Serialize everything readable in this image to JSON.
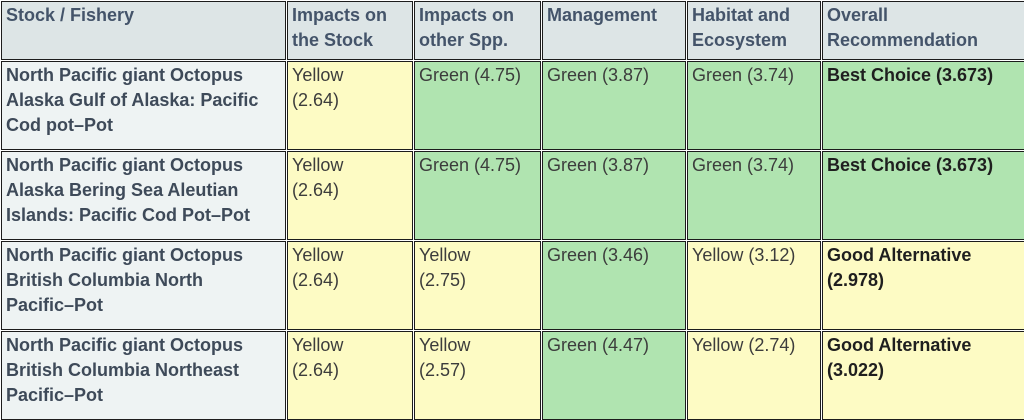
{
  "colors": {
    "header_bg": "#dde5e6",
    "header_text": "#44546a",
    "stock_col_bg": "#eef3f3",
    "stock_col_text": "#3e4a59",
    "yellow": "#fdfbc4",
    "green": "#b0e4b0",
    "cell_text": "#3c3c3c",
    "overall_text": "#1f1f1f",
    "border": "#1c1c1c"
  },
  "table": {
    "columns": [
      {
        "id": "stock",
        "label": "Stock / Fishery"
      },
      {
        "id": "impacts-stock",
        "label": "Impacts on\nthe Stock"
      },
      {
        "id": "impacts-other-spp",
        "label": "Impacts on\nother Spp."
      },
      {
        "id": "management",
        "label": "Management"
      },
      {
        "id": "habitat-ecosystem",
        "label": "Habitat and\nEcosystem"
      },
      {
        "id": "overall-recommendation",
        "label": "Overall\nRecommendation"
      }
    ],
    "rows": [
      {
        "stock": "North Pacific giant Octopus\nAlaska Gulf of Alaska: Pacific\nCod pot–Pot",
        "cells": [
          {
            "text": "Yellow\n(2.64)",
            "rating": "yellow"
          },
          {
            "text": "Green (4.75)",
            "rating": "green"
          },
          {
            "text": "Green (3.87)",
            "rating": "green"
          },
          {
            "text": "Green (3.74)",
            "rating": "green"
          }
        ],
        "overall": {
          "text": "Best Choice (3.673)",
          "rating": "green"
        }
      },
      {
        "stock": "North Pacific giant Octopus\nAlaska Bering Sea Aleutian\nIslands: Pacific Cod Pot–Pot",
        "cells": [
          {
            "text": "Yellow\n(2.64)",
            "rating": "yellow"
          },
          {
            "text": "Green (4.75)",
            "rating": "green"
          },
          {
            "text": "Green (3.87)",
            "rating": "green"
          },
          {
            "text": "Green (3.74)",
            "rating": "green"
          }
        ],
        "overall": {
          "text": "Best Choice (3.673)",
          "rating": "green"
        }
      },
      {
        "stock": "North Pacific giant Octopus\nBritish Columbia North\nPacific–Pot",
        "cells": [
          {
            "text": "Yellow\n(2.64)",
            "rating": "yellow"
          },
          {
            "text": "Yellow\n(2.75)",
            "rating": "yellow"
          },
          {
            "text": "Green (3.46)",
            "rating": "green"
          },
          {
            "text": "Yellow (3.12)",
            "rating": "yellow"
          }
        ],
        "overall": {
          "text": "Good Alternative\n(2.978)",
          "rating": "yellow"
        }
      },
      {
        "stock": "North Pacific giant Octopus\nBritish Columbia Northeast\nPacific–Pot",
        "cells": [
          {
            "text": "Yellow\n(2.64)",
            "rating": "yellow"
          },
          {
            "text": "Yellow\n(2.57)",
            "rating": "yellow"
          },
          {
            "text": "Green (4.47)",
            "rating": "green"
          },
          {
            "text": "Yellow (2.74)",
            "rating": "yellow"
          }
        ],
        "overall": {
          "text": "Good Alternative\n(3.022)",
          "rating": "yellow"
        }
      }
    ]
  },
  "chart_data": {
    "type": "table",
    "title": "",
    "columns": [
      "Stock / Fishery",
      "Impacts on the Stock",
      "Impacts on other Spp.",
      "Management",
      "Habitat and Ecosystem",
      "Overall Recommendation"
    ],
    "rows": [
      [
        "North Pacific giant Octopus Alaska Gulf of Alaska: Pacific Cod pot–Pot",
        "Yellow (2.64)",
        "Green (4.75)",
        "Green (3.87)",
        "Green (3.74)",
        "Best Choice (3.673)"
      ],
      [
        "North Pacific giant Octopus Alaska Bering Sea Aleutian Islands: Pacific Cod Pot–Pot",
        "Yellow (2.64)",
        "Green (4.75)",
        "Green (3.87)",
        "Green (3.74)",
        "Best Choice (3.673)"
      ],
      [
        "North Pacific giant Octopus British Columbia North Pacific–Pot",
        "Yellow (2.64)",
        "Yellow (2.75)",
        "Green (3.46)",
        "Yellow (3.12)",
        "Good Alternative (2.978)"
      ],
      [
        "North Pacific giant Octopus British Columbia Northeast Pacific–Pot",
        "Yellow (2.64)",
        "Yellow (2.57)",
        "Green (4.47)",
        "Yellow (2.74)",
        "Good Alternative (3.022)"
      ]
    ],
    "numeric_scores": {
      "impacts_on_the_stock": [
        2.64,
        2.64,
        2.64,
        2.64
      ],
      "impacts_on_other_spp": [
        4.75,
        4.75,
        2.75,
        2.57
      ],
      "management": [
        3.87,
        3.87,
        3.46,
        4.47
      ],
      "habitat_and_ecosystem": [
        3.74,
        3.74,
        3.12,
        2.74
      ],
      "overall": [
        3.673,
        3.673,
        2.978,
        3.022
      ]
    }
  }
}
